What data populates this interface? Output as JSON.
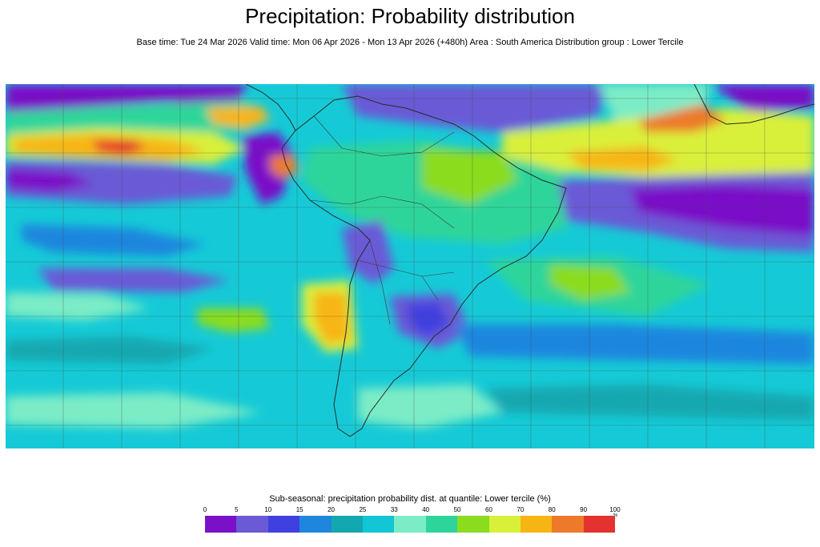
{
  "title": "Precipitation: Probability distribution",
  "subtitle": "Base time: Tue 24 Mar 2026 Valid time: Mon 06 Apr 2026 - Mon 13 Apr 2026 (+480h) Area : South America Distribution group : Lower Tercile",
  "colorbar": {
    "title": "Sub-seasonal: precipitation probability dist. at quantile: Lower tercile (%)",
    "unit": "%",
    "ticks": [
      "0",
      "5",
      "10",
      "15",
      "20",
      "25",
      "33",
      "40",
      "50",
      "60",
      "70",
      "80",
      "90",
      "100"
    ],
    "colors": [
      "#7a11c8",
      "#6a5ad6",
      "#3f40e0",
      "#1f86de",
      "#13a8b0",
      "#12c6d6",
      "#7cecc6",
      "#2ed59a",
      "#8bdc1f",
      "#d9f03a",
      "#f7b514",
      "#ec7a2a",
      "#e4332e"
    ]
  },
  "map": {
    "region": "South America",
    "background_color": "#15cad6"
  }
}
